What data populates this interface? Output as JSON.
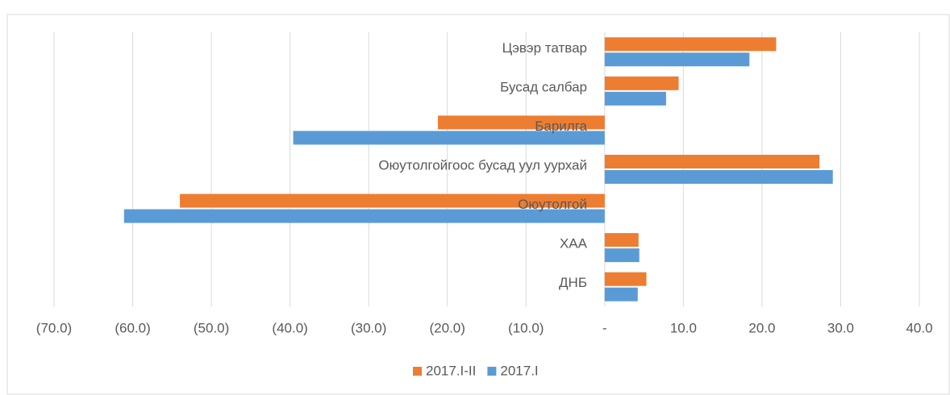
{
  "chart_data": {
    "type": "hbar",
    "categories": [
      "Цэвэр татвар",
      "Бусад салбар",
      "Барилга",
      "Оюутолгойгоос бусад уул уурхай",
      "Оюутолгой",
      "ХАА",
      "ДНБ"
    ],
    "series": [
      {
        "name": "2017.I-II",
        "color": "#ed7d31",
        "values": [
          21.8,
          9.4,
          -21.2,
          27.3,
          -54.0,
          4.3,
          5.3
        ]
      },
      {
        "name": "2017.I",
        "color": "#5b9bd5",
        "values": [
          18.4,
          7.8,
          -39.6,
          29.0,
          -61.1,
          4.4,
          4.2
        ]
      }
    ],
    "xlim": [
      -70,
      40
    ],
    "xticks": [
      {
        "value": -70,
        "label": "(70.0)"
      },
      {
        "value": -60,
        "label": "(60.0)"
      },
      {
        "value": -50,
        "label": "(50.0)"
      },
      {
        "value": -40,
        "label": "(40.0)"
      },
      {
        "value": -30,
        "label": "(30.0)"
      },
      {
        "value": -20,
        "label": "(20.0)"
      },
      {
        "value": -10,
        "label": "(10.0)"
      },
      {
        "value": 0,
        "label": "-"
      },
      {
        "value": 10,
        "label": "10.0"
      },
      {
        "value": 20,
        "label": "20.0"
      },
      {
        "value": 30,
        "label": "30.0"
      },
      {
        "value": 40,
        "label": "40.0"
      }
    ],
    "grid": true,
    "legend": "bottom"
  }
}
